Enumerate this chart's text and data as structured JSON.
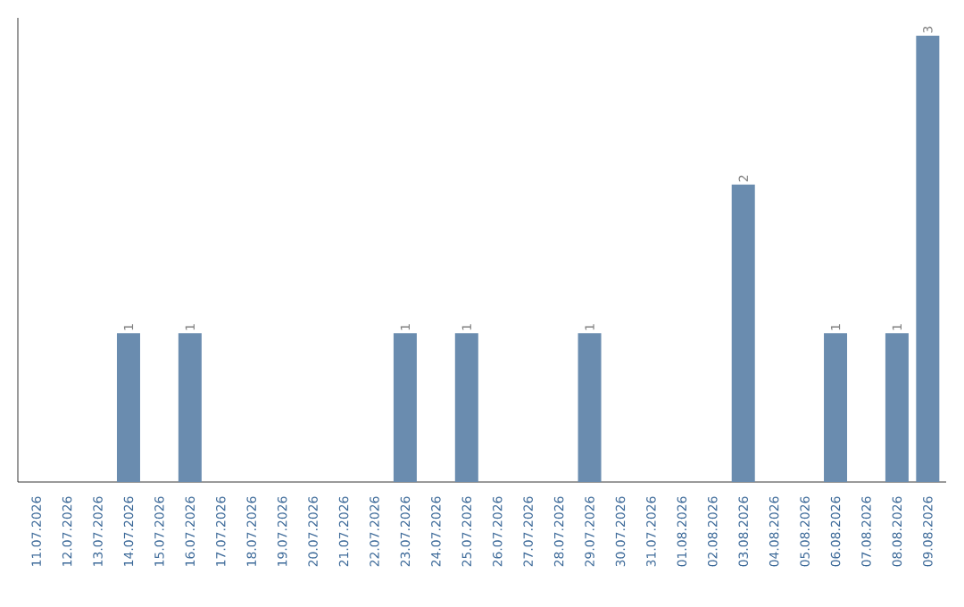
{
  "chart_data": {
    "type": "bar",
    "categories": [
      "11.07.2026",
      "12.07.2026",
      "13.07.2026",
      "14.07.2026",
      "15.07.2026",
      "16.07.2026",
      "17.07.2026",
      "18.07.2026",
      "19.07.2026",
      "20.07.2026",
      "21.07.2026",
      "22.07.2026",
      "23.07.2026",
      "24.07.2026",
      "25.07.2026",
      "26.07.2026",
      "27.07.2026",
      "28.07.2026",
      "29.07.2026",
      "30.07.2026",
      "31.07.2026",
      "01.08.2026",
      "02.08.2026",
      "03.08.2026",
      "04.08.2026",
      "05.08.2026",
      "06.08.2026",
      "07.08.2026",
      "08.08.2026",
      "09.08.2026"
    ],
    "values": [
      0,
      0,
      0,
      1,
      0,
      1,
      0,
      0,
      0,
      0,
      0,
      0,
      1,
      0,
      1,
      0,
      0,
      0,
      1,
      0,
      0,
      0,
      0,
      2,
      0,
      0,
      1,
      0,
      1,
      3
    ],
    "value_labels": [
      null,
      null,
      null,
      "1",
      null,
      "1",
      null,
      null,
      null,
      null,
      null,
      null,
      "1",
      null,
      "1",
      null,
      null,
      null,
      "1",
      null,
      null,
      null,
      null,
      "2",
      null,
      null,
      "1",
      null,
      "1",
      "3"
    ],
    "color": "#6a8caf",
    "ylim": [
      0,
      3
    ],
    "tick_labels": "x",
    "grid": false
  }
}
